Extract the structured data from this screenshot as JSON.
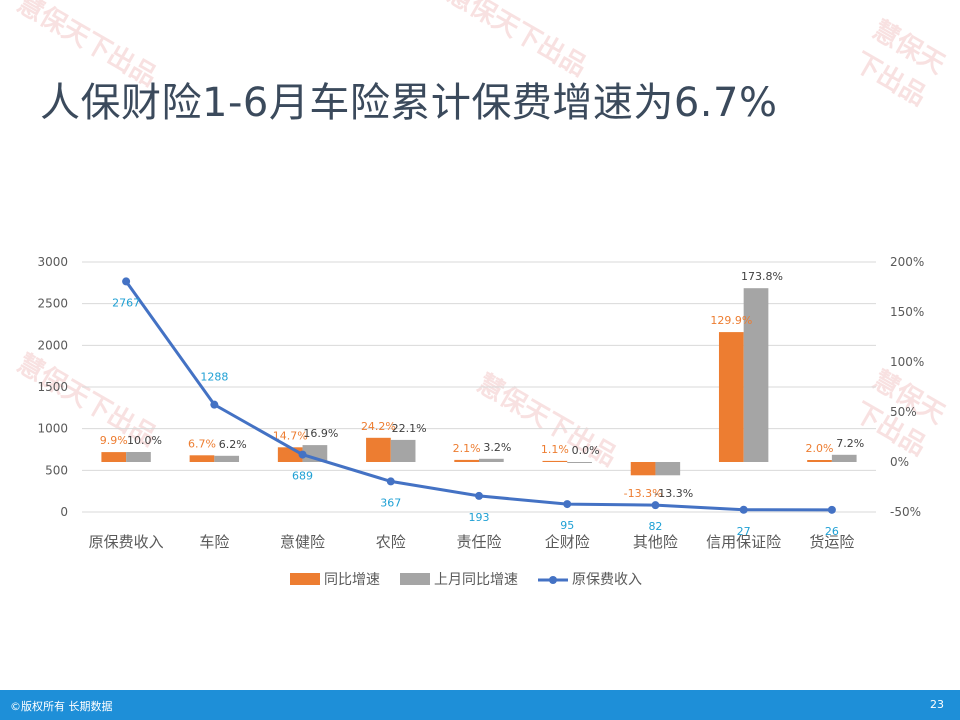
{
  "slide": {
    "title": "人保财险1-6月车险累计保费增速为6.7%",
    "watermark_text": "慧保天下出品",
    "footer_left": "©版权所有 长期数据",
    "page_number": "23"
  },
  "colors": {
    "bar_current": "#ed7d31",
    "bar_prev": "#a5a5a5",
    "line": "#4472c4",
    "line_label": "#1fa0d4",
    "grid": "#d9d9d9",
    "axis_text": "#595959"
  },
  "chart_data": {
    "type": "bar",
    "categories": [
      "原保费收入",
      "车险",
      "意健险",
      "农险",
      "责任险",
      "企财险",
      "其他险",
      "信用保证险",
      "货运险"
    ],
    "series": [
      {
        "name": "同比增速",
        "kind": "bar",
        "axis": "right",
        "values": [
          9.9,
          6.7,
          14.7,
          24.2,
          2.1,
          1.1,
          -13.3,
          129.9,
          2.0
        ],
        "labels": [
          "9.9%",
          "6.7%",
          "14.7%",
          "24.2%",
          "2.1%",
          "1.1%",
          "-13.3%",
          "129.9%",
          "2.0%"
        ]
      },
      {
        "name": "上月同比增速",
        "kind": "bar",
        "axis": "right",
        "values": [
          10.0,
          6.2,
          16.9,
          22.1,
          3.2,
          0.0,
          -13.3,
          173.8,
          7.2
        ],
        "labels": [
          "10.0%",
          "6.2%",
          "16.9%",
          "22.1%",
          "3.2%",
          "0.0%",
          "-13.3%",
          "173.8%",
          "7.2%"
        ]
      },
      {
        "name": "原保费收入",
        "kind": "line",
        "axis": "left",
        "values": [
          2767,
          1288,
          689,
          367,
          193,
          95,
          82,
          27,
          26
        ],
        "labels": [
          "2767",
          "1288",
          "689",
          "367",
          "193",
          "95",
          "82",
          "27",
          "26"
        ]
      }
    ],
    "y_left": {
      "min": 0,
      "max": 3000,
      "ticks": [
        "0",
        "500",
        "1000",
        "1500",
        "2000",
        "2500",
        "3000"
      ]
    },
    "y_right": {
      "min": -50,
      "max": 200,
      "ticks": [
        "-50%",
        "0%",
        "50%",
        "100%",
        "150%",
        "200%"
      ]
    },
    "legend": [
      "同比增速",
      "上月同比增速",
      "原保费收入"
    ],
    "grid": true,
    "legend_position": "bottom"
  }
}
